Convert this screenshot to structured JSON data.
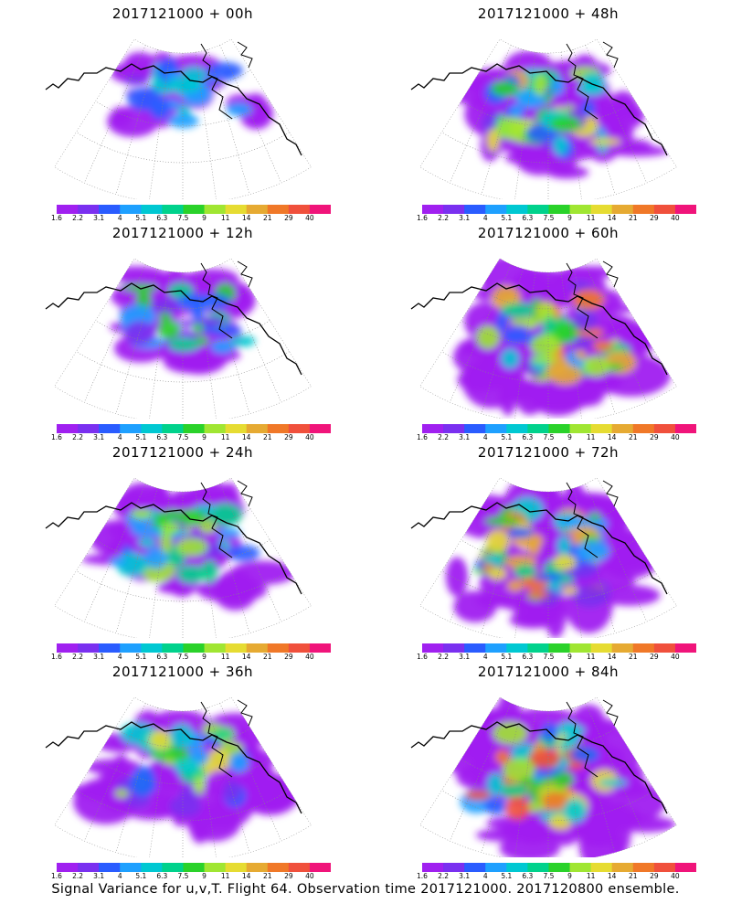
{
  "panels": [
    {
      "title": "2017121000 + 00h",
      "spread": 0.25
    },
    {
      "title": "2017121000 + 48h",
      "spread": 0.78
    },
    {
      "title": "2017121000 + 12h",
      "spread": 0.4
    },
    {
      "title": "2017121000 + 60h",
      "spread": 0.85
    },
    {
      "title": "2017121000 + 24h",
      "spread": 0.55
    },
    {
      "title": "2017121000 + 72h",
      "spread": 0.92
    },
    {
      "title": "2017121000 + 36h",
      "spread": 0.68
    },
    {
      "title": "2017121000 + 84h",
      "spread": 0.98
    }
  ],
  "colorbar": {
    "labels": [
      "1.6",
      "2.2",
      "3.1",
      "4",
      "5.1",
      "6.3",
      "7.5",
      "9",
      "11",
      "14",
      "21",
      "29",
      "40"
    ],
    "colors": [
      "#a020f0",
      "#7a30f0",
      "#2a5cff",
      "#1ea0ff",
      "#00c8d2",
      "#00d28c",
      "#2ad22a",
      "#a0e632",
      "#e6dc32",
      "#e6aa32",
      "#f07828",
      "#f0503c",
      "#f0147a"
    ]
  },
  "caption": "Signal Variance for u,v,T. Flight 64. Observation time 2017121000. 2017120800 ensemble."
}
